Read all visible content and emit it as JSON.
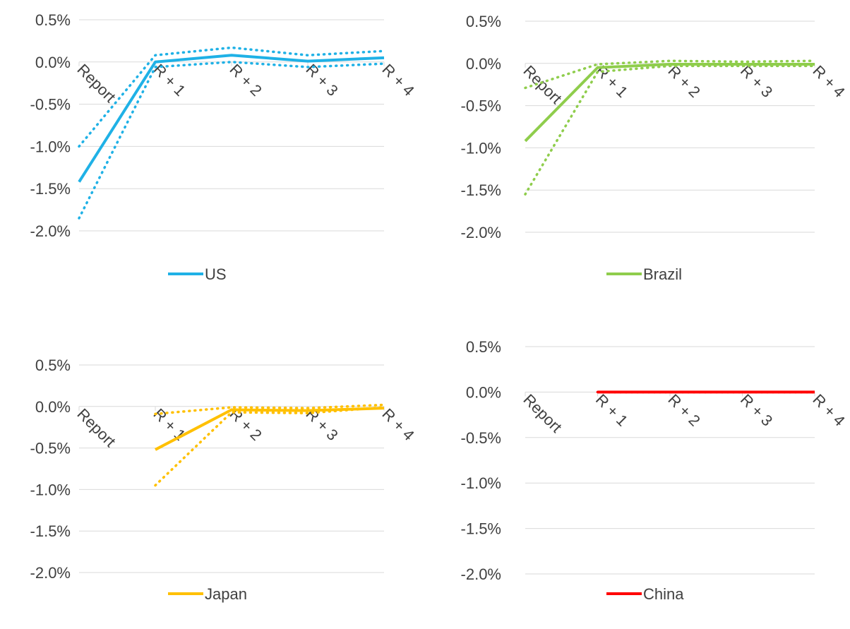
{
  "chart_data": [
    {
      "type": "line",
      "categories": [
        "Report",
        "R + 1",
        "R + 2",
        "R + 3",
        "R + 4"
      ],
      "yticks": [
        "0.5%",
        "0.0%",
        "-0.5%",
        "-1.0%",
        "-1.5%",
        "-2.0%"
      ],
      "ylim": [
        -2.0,
        0.5
      ],
      "grid": true,
      "legend": "bottom",
      "color": "#1fb1e6",
      "series": [
        {
          "name": "US",
          "style": "solid",
          "values": [
            -1.42,
            0.0,
            0.08,
            0.01,
            0.05
          ]
        },
        {
          "style": "dotted",
          "values": [
            -1.0,
            0.08,
            0.17,
            0.08,
            0.13
          ]
        },
        {
          "style": "dotted",
          "values": [
            -1.85,
            -0.06,
            0.0,
            -0.06,
            -0.02
          ]
        }
      ]
    },
    {
      "type": "line",
      "categories": [
        "Report",
        "R + 1",
        "R + 2",
        "R + 3",
        "R + 4"
      ],
      "yticks": [
        "0.5%",
        "0.0%",
        "-0.5%",
        "-1.0%",
        "-1.5%",
        "-2.0%"
      ],
      "ylim": [
        -2.0,
        0.5
      ],
      "grid": true,
      "legend": "bottom",
      "color": "#8fcd4c",
      "series": [
        {
          "name": "Brazil",
          "style": "solid",
          "values": [
            -0.92,
            -0.05,
            -0.01,
            -0.01,
            -0.01
          ]
        },
        {
          "style": "dotted",
          "values": [
            -0.29,
            -0.01,
            0.03,
            0.02,
            0.03
          ]
        },
        {
          "style": "dotted",
          "values": [
            -1.55,
            -0.1,
            -0.03,
            -0.03,
            -0.03
          ]
        }
      ]
    },
    {
      "type": "line",
      "categories": [
        "Report",
        "R + 1",
        "R + 2",
        "R + 3",
        "R + 4"
      ],
      "yticks": [
        "0.5%",
        "0.0%",
        "-0.5%",
        "-1.0%",
        "-1.5%",
        "-2.0%"
      ],
      "ylim": [
        -2.0,
        0.5
      ],
      "grid": true,
      "legend": "bottom",
      "color": "#ffc000",
      "series": [
        {
          "name": "Japan",
          "style": "solid",
          "values": [
            null,
            -0.52,
            -0.04,
            -0.05,
            -0.02
          ]
        },
        {
          "style": "dotted",
          "values": [
            null,
            -0.09,
            -0.01,
            -0.02,
            0.02
          ]
        },
        {
          "style": "dotted",
          "values": [
            null,
            -0.95,
            -0.07,
            -0.08,
            -0.01
          ]
        }
      ]
    },
    {
      "type": "line",
      "categories": [
        "Report",
        "R + 1",
        "R + 2",
        "R + 3",
        "R + 4"
      ],
      "yticks": [
        "0.5%",
        "0.0%",
        "-0.5%",
        "-1.0%",
        "-1.5%",
        "-2.0%"
      ],
      "ylim": [
        -2.0,
        0.5
      ],
      "grid": true,
      "legend": "bottom",
      "color": "#ff0000",
      "series": [
        {
          "name": "China",
          "style": "solid",
          "values": [
            null,
            0.0,
            0.0,
            0.0,
            0.0
          ]
        },
        {
          "style": "dotted",
          "values": [
            null,
            0.0,
            0.0,
            0.0,
            0.0
          ]
        },
        {
          "style": "dotted",
          "values": [
            null,
            0.0,
            0.0,
            0.0,
            0.0
          ]
        }
      ]
    }
  ]
}
